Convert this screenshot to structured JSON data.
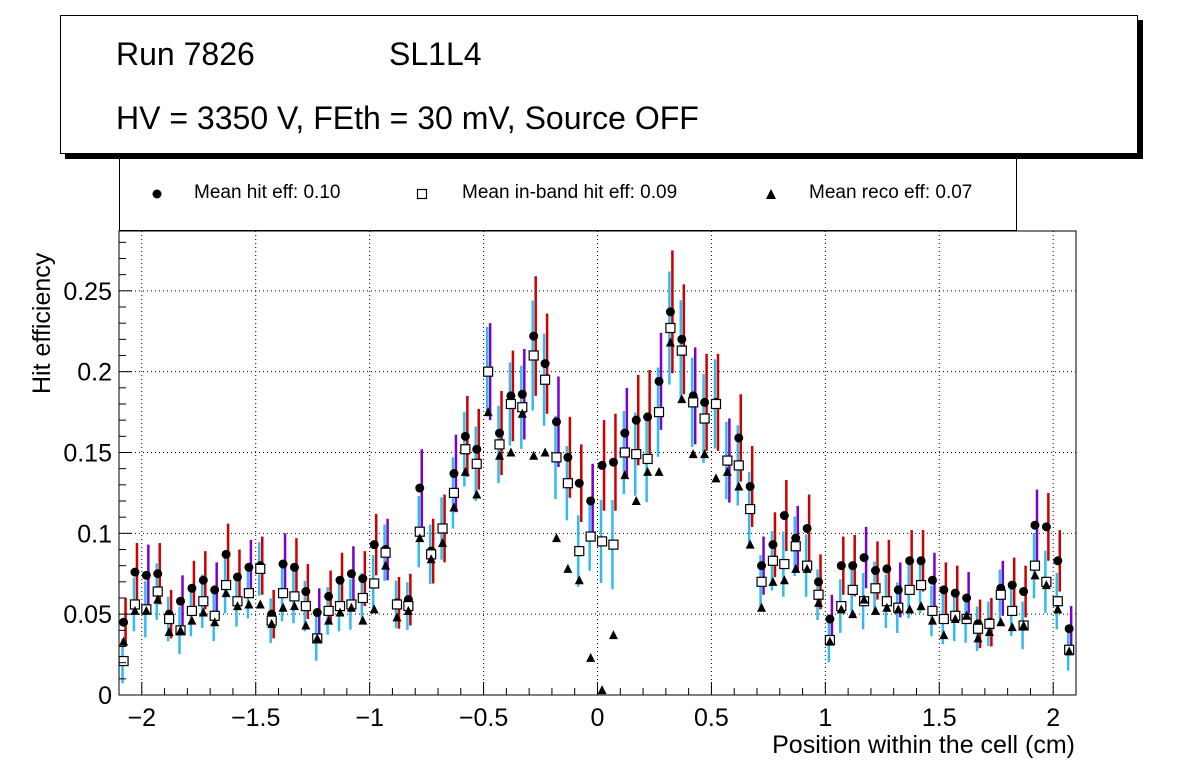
{
  "header": {
    "run": "Run 7826",
    "layer": "SL1L4",
    "conditions": "HV = 3350 V, FEth = 30 mV, Source OFF"
  },
  "legend": {
    "hit": "Mean hit  eff: 0.10",
    "inband": "Mean in-band hit eff: 0.09",
    "reco": "Mean reco eff: 0.07"
  },
  "colors": {
    "hit_err_high": "#cc0000",
    "hit_err_mid": "#7a00cc",
    "inband_err": "#33bbee",
    "marker": "#000000"
  },
  "chart_data": {
    "type": "scatter",
    "xlabel": "Position within the cell (cm)",
    "ylabel": "Hit efficiency",
    "xlim": [
      -2.1,
      2.1
    ],
    "ylim": [
      0,
      0.287
    ],
    "x_ticks": [
      -2,
      -1.5,
      -1,
      -0.5,
      0,
      0.5,
      1,
      1.5,
      2
    ],
    "x_tick_labels": [
      "−2",
      "−1.5",
      "−1",
      "−0.5",
      "0",
      "0.5",
      "1",
      "1.5",
      "2"
    ],
    "y_ticks": [
      0,
      0.05,
      0.1,
      0.15,
      0.2,
      0.25
    ],
    "y_tick_labels": [
      "0",
      "0.05",
      "0.1",
      "0.15",
      "0.2",
      "0.25"
    ],
    "grid": true,
    "x": [
      -2.08,
      -2.03,
      -1.98,
      -1.93,
      -1.88,
      -1.83,
      -1.78,
      -1.73,
      -1.68,
      -1.63,
      -1.58,
      -1.53,
      -1.48,
      -1.43,
      -1.38,
      -1.33,
      -1.28,
      -1.23,
      -1.18,
      -1.13,
      -1.08,
      -1.03,
      -0.98,
      -0.93,
      -0.88,
      -0.83,
      -0.78,
      -0.73,
      -0.68,
      -0.63,
      -0.58,
      -0.53,
      -0.48,
      -0.43,
      -0.38,
      -0.33,
      -0.28,
      -0.23,
      -0.18,
      -0.13,
      -0.08,
      -0.03,
      0.02,
      0.07,
      0.12,
      0.17,
      0.22,
      0.27,
      0.32,
      0.37,
      0.42,
      0.47,
      0.52,
      0.57,
      0.62,
      0.67,
      0.72,
      0.77,
      0.82,
      0.87,
      0.92,
      0.97,
      1.02,
      1.07,
      1.12,
      1.17,
      1.22,
      1.27,
      1.32,
      1.37,
      1.42,
      1.47,
      1.52,
      1.57,
      1.62,
      1.67,
      1.72,
      1.77,
      1.82,
      1.87,
      1.92,
      1.97,
      2.02,
      2.07
    ],
    "series": [
      {
        "name": "Mean hit eff",
        "marker": "circle",
        "values": [
          0.045,
          0.076,
          0.074,
          0.075,
          0.05,
          0.058,
          0.066,
          0.071,
          0.065,
          0.087,
          0.073,
          0.079,
          0.08,
          0.05,
          0.081,
          0.079,
          0.064,
          0.051,
          0.061,
          0.071,
          0.075,
          0.072,
          0.093,
          0.09,
          0.057,
          0.059,
          0.128,
          0.089,
          0.103,
          0.137,
          0.16,
          0.152,
          0.2,
          0.162,
          0.185,
          0.186,
          0.222,
          0.205,
          0.169,
          0.147,
          0.131,
          0.12,
          0.142,
          0.144,
          0.162,
          0.17,
          0.172,
          0.194,
          0.237,
          0.22,
          0.185,
          0.181,
          0.181,
          0.145,
          0.159,
          0.129,
          0.08,
          0.093,
          0.111,
          0.097,
          0.103,
          0.07,
          0.047,
          0.08,
          0.08,
          0.085,
          0.077,
          0.078,
          0.065,
          0.083,
          0.083,
          0.071,
          0.065,
          0.063,
          0.06,
          0.044,
          0.045,
          0.066,
          0.068,
          0.064,
          0.105,
          0.104,
          0.083,
          0.041
        ],
        "err": [
          0.015,
          0.018,
          0.019,
          0.019,
          0.015,
          0.016,
          0.017,
          0.018,
          0.017,
          0.019,
          0.017,
          0.017,
          0.018,
          0.015,
          0.019,
          0.018,
          0.017,
          0.015,
          0.016,
          0.017,
          0.017,
          0.017,
          0.019,
          0.019,
          0.016,
          0.016,
          0.024,
          0.02,
          0.021,
          0.024,
          0.025,
          0.025,
          0.03,
          0.026,
          0.028,
          0.028,
          0.037,
          0.031,
          0.028,
          0.025,
          0.024,
          0.023,
          0.028,
          0.03,
          0.028,
          0.028,
          0.029,
          0.03,
          0.038,
          0.034,
          0.03,
          0.03,
          0.03,
          0.026,
          0.027,
          0.025,
          0.018,
          0.02,
          0.022,
          0.02,
          0.021,
          0.017,
          0.015,
          0.018,
          0.019,
          0.019,
          0.018,
          0.018,
          0.017,
          0.019,
          0.019,
          0.017,
          0.017,
          0.017,
          0.016,
          0.015,
          0.015,
          0.017,
          0.017,
          0.016,
          0.022,
          0.021,
          0.019,
          0.014
        ]
      },
      {
        "name": "Mean in-band hit eff",
        "marker": "open-square",
        "values": [
          0.021,
          0.056,
          0.053,
          0.064,
          0.047,
          0.04,
          0.052,
          0.058,
          0.049,
          0.068,
          0.058,
          0.063,
          0.078,
          0.046,
          0.063,
          0.061,
          0.055,
          0.035,
          0.052,
          0.055,
          0.056,
          0.06,
          0.069,
          0.088,
          0.056,
          0.055,
          0.101,
          0.087,
          0.103,
          0.125,
          0.152,
          0.143,
          0.2,
          0.155,
          0.18,
          0.178,
          0.21,
          0.195,
          0.147,
          0.131,
          0.089,
          0.098,
          0.095,
          0.093,
          0.15,
          0.149,
          0.146,
          0.175,
          0.227,
          0.213,
          0.181,
          0.171,
          0.18,
          0.145,
          0.142,
          0.115,
          0.07,
          0.083,
          0.081,
          0.092,
          0.08,
          0.062,
          0.034,
          0.055,
          0.065,
          0.058,
          0.066,
          0.058,
          0.054,
          0.065,
          0.068,
          0.052,
          0.047,
          0.049,
          0.047,
          0.041,
          0.044,
          0.062,
          0.052,
          0.043,
          0.08,
          0.07,
          0.058,
          0.028
        ]
      },
      {
        "name": "Mean reco eff",
        "marker": "filled-triangle",
        "values": [
          0.033,
          0.052,
          0.052,
          0.059,
          0.039,
          0.04,
          0.046,
          0.051,
          0.045,
          0.063,
          0.055,
          0.056,
          0.056,
          0.044,
          0.054,
          0.055,
          0.043,
          0.035,
          0.046,
          0.051,
          0.054,
          0.046,
          0.053,
          0.08,
          0.048,
          0.052,
          0.097,
          0.084,
          0.094,
          0.116,
          0.138,
          0.124,
          0.175,
          0.148,
          0.15,
          0.174,
          0.148,
          0.15,
          0.097,
          0.078,
          0.071,
          0.023,
          0.003,
          0.037,
          0.136,
          0.12,
          0.138,
          0.138,
          0.218,
          0.183,
          0.149,
          0.149,
          0.134,
          0.138,
          0.129,
          0.093,
          0.054,
          0.07,
          0.071,
          0.078,
          0.078,
          0.057,
          0.033,
          0.053,
          0.05,
          0.059,
          0.052,
          0.054,
          0.053,
          0.053,
          0.055,
          0.046,
          0.037,
          0.047,
          0.049,
          0.035,
          0.039,
          0.045,
          0.042,
          0.043,
          0.074,
          0.068,
          0.053,
          0.027
        ]
      }
    ]
  }
}
